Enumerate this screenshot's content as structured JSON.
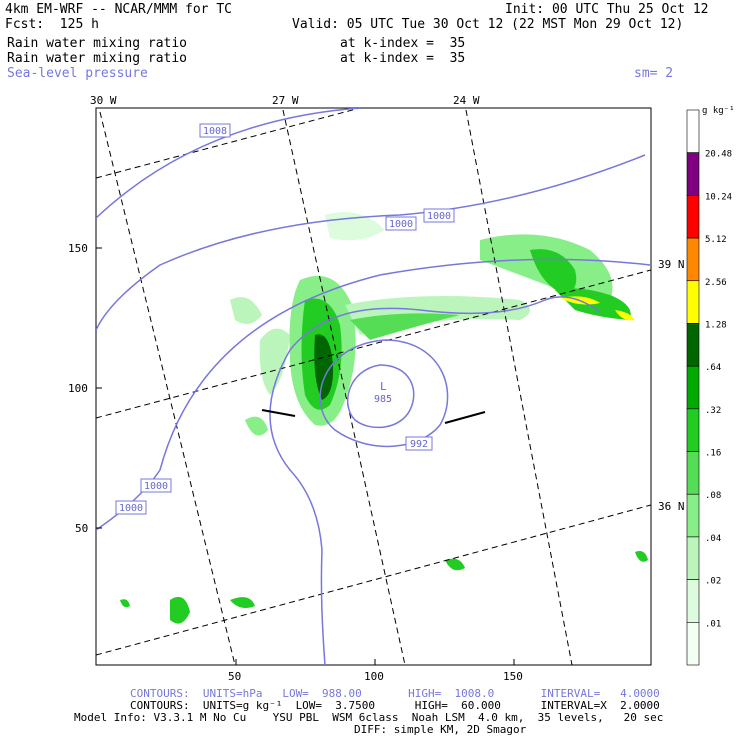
{
  "header": {
    "model_line": "4km EM-WRF -- NCAR/MMM for TC",
    "init_line": "Init: 00 UTC Thu 25 Oct 12",
    "fcst_line": "Fcst:  125 h",
    "valid_line": "Valid: 05 UTC Tue 30 Oct 12 (22 MST Mon 29 Oct 12)",
    "field1_name": "Rain water mixing ratio",
    "field1_level": "at k-index =  35",
    "field2_name": "Rain water mixing ratio",
    "field2_level": "at k-index =  35",
    "overlay_name": "Sea-level pressure",
    "smoothing": "sm= 2"
  },
  "map": {
    "lon_labels": [
      "30 W",
      "27 W",
      "24 W"
    ],
    "lat_labels": [
      "39 N",
      "36 N"
    ],
    "x_ticks": [
      "50",
      "100",
      "150"
    ],
    "y_ticks": [
      "150",
      "100",
      "50"
    ],
    "center_low_symbol": "L",
    "center_low_value": "985",
    "contour_labels": [
      "1008",
      "1000",
      "1000",
      "992",
      "1000",
      "1000"
    ]
  },
  "colorbar": {
    "units": "g kg⁻¹",
    "levels": [
      "20.48",
      "10.24",
      "5.12",
      "2.56",
      "1.28",
      ".64",
      ".32",
      ".16",
      ".08",
      ".04",
      ".02",
      ".01"
    ],
    "colors": [
      "#ffffff",
      "#800080",
      "#ff0000",
      "#ff8800",
      "#ffff00",
      "#006600",
      "#00aa00",
      "#22cc22",
      "#55dd55",
      "#88ee88",
      "#bbf5bb",
      "#ddfbdd",
      "#f3fff3"
    ]
  },
  "footer": {
    "contours1": "CONTOURS:  UNITS=hPa   LOW=  988.00       HIGH=  1008.0       INTERVAL=   4.0000",
    "contours2": "CONTOURS:  UNITS=g kg⁻¹  LOW=  3.7500      HIGH=  60.000      INTERVAL=X  2.0000",
    "model_info": "Model Info: V3.3.1 M No Cu    YSU PBL  WSM 6class  Noah LSM  4.0 km,  35 levels,   20 sec",
    "diff_info": "DIFF: simple KM, 2D Smagor"
  }
}
